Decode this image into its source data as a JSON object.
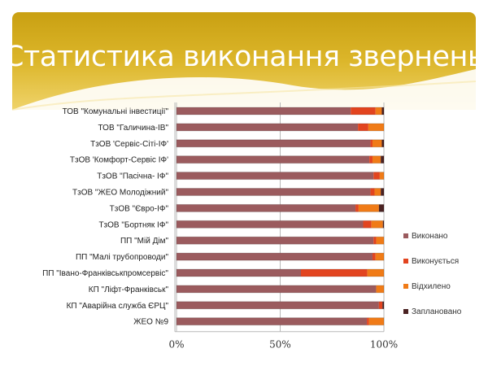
{
  "chart_data": {
    "type": "bar",
    "orientation": "horizontal",
    "stacked": "percent",
    "title": "Статистика виконання звернень",
    "categories": [
      "ТОВ \"Комунальні інвестиції\"",
      "ТОВ \"Галичина-ІВ\"",
      "ТзОВ 'Сервіс-Сіті-ІФ'",
      "ТзОВ 'Комфорт-Сервіс ІФ'",
      "ТзОВ \"Пасічна- ІФ\"",
      "ТзОВ \"ЖЕО Молодіжний\"",
      "ТзОВ \"Євро-ІФ\"",
      "ТзОВ  \"Бортняк ІФ\"",
      "ПП \"Мій Дім\"",
      "ПП \"Малі трубопроводи\"",
      "ПП \"Івано-Франківськпромсервіс\"",
      "КП \"Ліфт-Франківськ\"",
      "КП \"Аварійна служба ЄРЦ\"",
      "ЖЕО №9"
    ],
    "series": [
      {
        "name": "Виконано",
        "color": "#9b5b5e",
        "values": [
          84,
          87.5,
          93.5,
          93,
          95,
          93.5,
          86.3,
          90,
          95,
          94.5,
          60,
          96.3,
          97.6,
          91.8
        ]
      },
      {
        "name": "Виконується",
        "color": "#e2441f",
        "values": [
          12,
          5,
          1,
          1.5,
          3,
          2,
          1.5,
          4,
          1.3,
          1.5,
          32,
          0,
          1.7,
          1
        ]
      },
      {
        "name": "Відхилено",
        "color": "#f07b17",
        "values": [
          3,
          7.5,
          4.5,
          4,
          2,
          3,
          9.8,
          5.5,
          3.7,
          4,
          8,
          3.7,
          0,
          7.2
        ]
      },
      {
        "name": "Заплановано",
        "color": "#4a2222",
        "values": [
          1,
          0,
          1,
          1.5,
          0,
          1.5,
          2.4,
          0.5,
          0,
          0,
          0,
          0,
          0.7,
          0
        ]
      }
    ],
    "xticks": [
      "0%",
      "50%",
      "100%"
    ],
    "xlim": [
      0,
      100
    ],
    "grid": true,
    "legend": "right"
  }
}
